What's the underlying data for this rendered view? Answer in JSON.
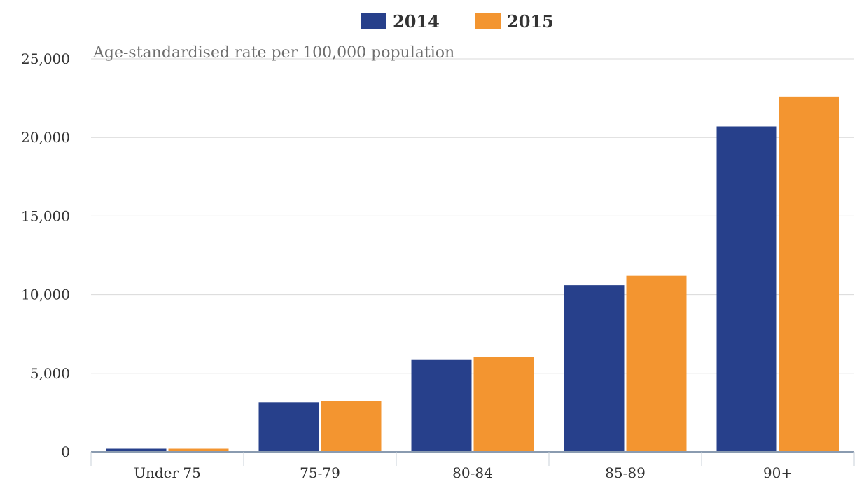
{
  "chart_data": {
    "type": "bar",
    "title": "",
    "subtitle": "Age-standardised rate per 100,000 population",
    "xlabel": "",
    "ylabel": "",
    "categories": [
      "Under 75",
      "75-79",
      "80-84",
      "85-89",
      "90+"
    ],
    "series": [
      {
        "name": "2014",
        "color": "#27408b",
        "values": [
          200,
          3150,
          5850,
          10600,
          20700
        ]
      },
      {
        "name": "2015",
        "color": "#f39530",
        "values": [
          200,
          3250,
          6050,
          11200,
          22600
        ]
      }
    ],
    "ylim": [
      0,
      25000
    ],
    "yticks": [
      0,
      5000,
      10000,
      15000,
      20000,
      25000
    ],
    "ytick_labels": [
      "0",
      "5,000",
      "10,000",
      "15,000",
      "20,000",
      "25,000"
    ],
    "grid": true,
    "legend_position": "top-center"
  }
}
